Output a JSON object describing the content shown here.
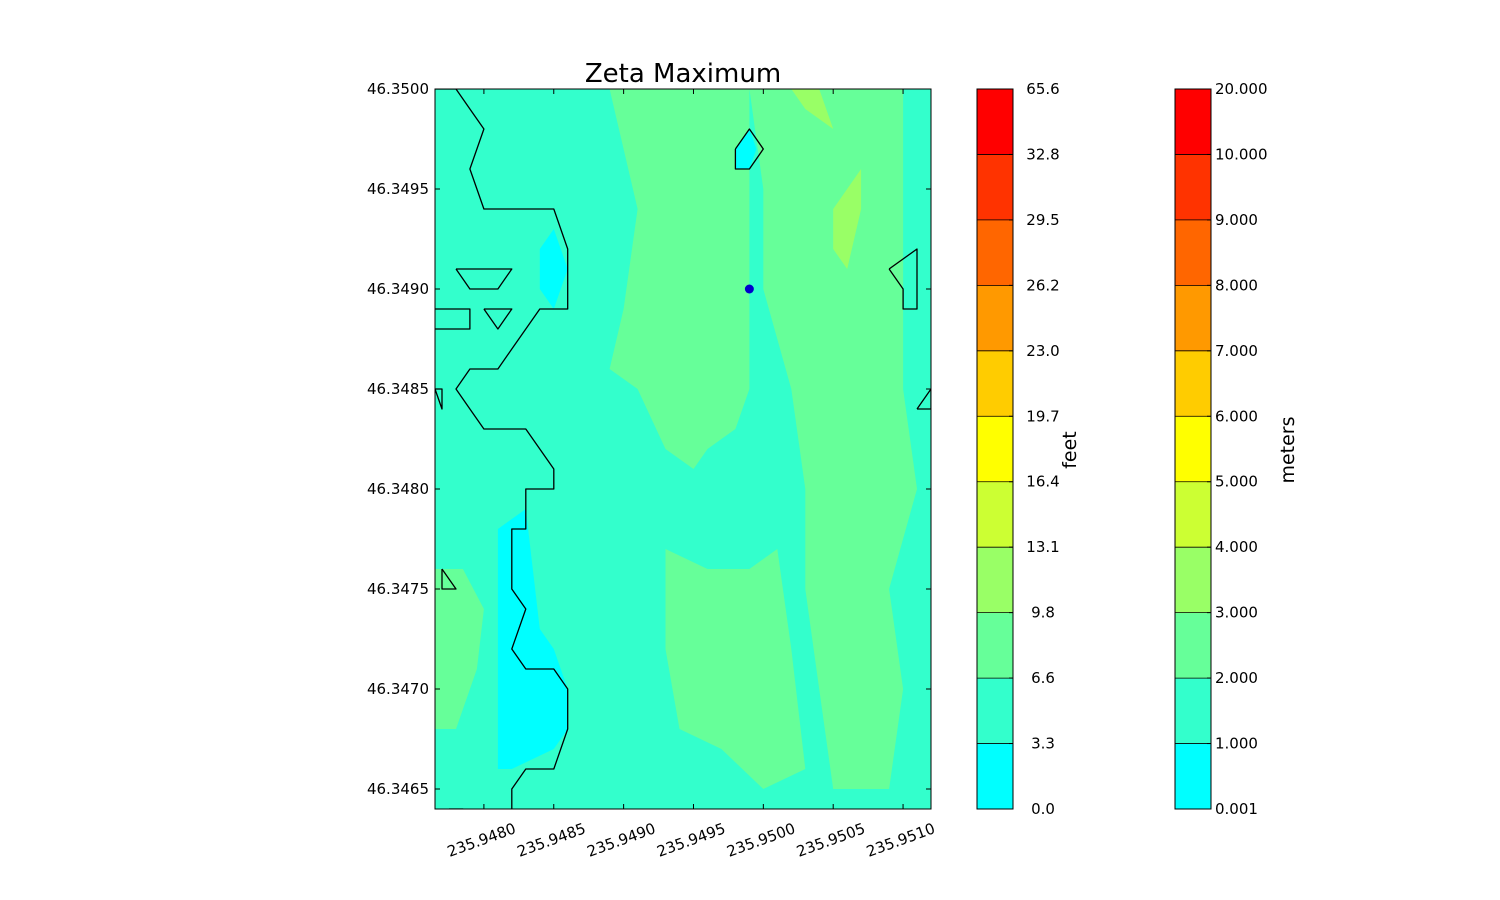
{
  "chart_data": {
    "type": "heatmap",
    "title": "Zeta Maximum",
    "xlabel": "",
    "ylabel": "",
    "xlim": [
      235.94765,
      235.9512
    ],
    "ylim": [
      46.3464,
      46.35
    ],
    "x_ticks": [
      235.948,
      235.9485,
      235.949,
      235.9495,
      235.95,
      235.9505,
      235.951
    ],
    "x_tick_labels": [
      "235.9480",
      "235.9485",
      "235.9490",
      "235.9495",
      "235.9500",
      "235.9505",
      "235.9510"
    ],
    "y_ticks": [
      46.3465,
      46.347,
      46.3475,
      46.348,
      46.3485,
      46.349,
      46.3495,
      46.35
    ],
    "y_tick_labels": [
      "46.3465",
      "46.3470",
      "46.3475",
      "46.3480",
      "46.3485",
      "46.3490",
      "46.3495",
      "46.3500"
    ],
    "marker": {
      "x": 235.9499,
      "y": 46.349,
      "color": "#0000cc"
    },
    "colorbars": [
      {
        "label": "feet",
        "tick_labels": [
          "0.0",
          "3.3",
          "6.6",
          "9.8",
          "13.1",
          "16.4",
          "19.7",
          "23.0",
          "26.2",
          "29.5",
          "32.8",
          "65.6"
        ]
      },
      {
        "label": "meters",
        "tick_labels": [
          "0.001",
          "1.000",
          "2.000",
          "3.000",
          "4.000",
          "5.000",
          "6.000",
          "7.000",
          "8.000",
          "9.000",
          "10.000",
          "20.000"
        ]
      }
    ],
    "level_colors": [
      "#00ffff",
      "#33ffcc",
      "#66ff99",
      "#99ff66",
      "#ccff33",
      "#ffff00",
      "#ffcc00",
      "#ff9900",
      "#ff6600",
      "#ff3300",
      "#ff0000"
    ],
    "field_background_level_color": "#33ffcc",
    "regions": [
      {
        "level_color": "#66ff99",
        "points": [
          [
            235.9489,
            46.35
          ],
          [
            235.9499,
            46.35
          ],
          [
            235.95,
            46.3495
          ],
          [
            235.95,
            46.349
          ],
          [
            235.9502,
            46.3485
          ],
          [
            235.9503,
            46.348
          ],
          [
            235.9503,
            46.3475
          ],
          [
            235.9504,
            46.347
          ],
          [
            235.9505,
            46.3465
          ],
          [
            235.9509,
            46.3465
          ],
          [
            235.951,
            46.347
          ],
          [
            235.9509,
            46.3475
          ],
          [
            235.9511,
            46.348
          ],
          [
            235.951,
            46.3485
          ],
          [
            235.951,
            46.349
          ],
          [
            235.951,
            46.3495
          ],
          [
            235.951,
            46.35
          ],
          [
            235.95,
            46.35
          ],
          [
            235.9499,
            46.35
          ],
          [
            235.9489,
            46.35
          ]
        ]
      },
      {
        "level_color": "#66ff99",
        "points": [
          [
            235.9489,
            46.35
          ],
          [
            235.9491,
            46.3494
          ],
          [
            235.949,
            46.3489
          ],
          [
            235.9489,
            46.3486
          ],
          [
            235.9491,
            46.3485
          ],
          [
            235.9493,
            46.3482
          ],
          [
            235.9495,
            46.3481
          ],
          [
            235.9496,
            46.3482
          ],
          [
            235.9498,
            46.3483
          ],
          [
            235.9499,
            46.3485
          ],
          [
            235.9499,
            46.349
          ],
          [
            235.9499,
            46.3495
          ],
          [
            235.9499,
            46.35
          ]
        ]
      },
      {
        "level_color": "#66ff99",
        "points": [
          [
            235.9493,
            46.3477
          ],
          [
            235.9496,
            46.3476
          ],
          [
            235.9499,
            46.3476
          ],
          [
            235.9501,
            46.3477
          ],
          [
            235.9502,
            46.3472
          ],
          [
            235.9503,
            46.3466
          ],
          [
            235.95,
            46.3465
          ],
          [
            235.9497,
            46.3467
          ],
          [
            235.9494,
            46.3468
          ],
          [
            235.9493,
            46.3472
          ]
        ]
      },
      {
        "level_color": "#99ff66",
        "points": [
          [
            235.9502,
            46.35
          ],
          [
            235.9504,
            46.35
          ],
          [
            235.9505,
            46.3498
          ],
          [
            235.9503,
            46.3499
          ]
        ]
      },
      {
        "level_color": "#99ff66",
        "points": [
          [
            235.9505,
            46.3494
          ],
          [
            235.9507,
            46.3496
          ],
          [
            235.9507,
            46.3494
          ],
          [
            235.9506,
            46.3491
          ],
          [
            235.9505,
            46.3492
          ]
        ]
      },
      {
        "level_color": "#66ff99",
        "points": [
          [
            235.94765,
            46.3476
          ],
          [
            235.94785,
            46.3476
          ],
          [
            235.948,
            46.3474
          ],
          [
            235.94795,
            46.3471
          ],
          [
            235.9478,
            46.3468
          ],
          [
            235.94765,
            46.3468
          ]
        ]
      },
      {
        "level_color": "#00ffff",
        "points": [
          [
            235.9481,
            46.3478
          ],
          [
            235.9483,
            46.3479
          ],
          [
            235.9484,
            46.3473
          ],
          [
            235.9485,
            46.3472
          ],
          [
            235.9486,
            46.347
          ],
          [
            235.9486,
            46.3468
          ],
          [
            235.9485,
            46.3467
          ],
          [
            235.9482,
            46.3466
          ],
          [
            235.9481,
            46.3466
          ],
          [
            235.9481,
            46.347
          ]
        ]
      },
      {
        "level_color": "#00ffff",
        "points": [
          [
            235.9484,
            46.3492
          ],
          [
            235.9485,
            46.3493
          ],
          [
            235.9486,
            46.3491
          ],
          [
            235.9485,
            46.3489
          ],
          [
            235.9484,
            46.349
          ]
        ]
      },
      {
        "level_color": "#00ffff",
        "points": [
          [
            235.9498,
            46.3497
          ],
          [
            235.9499,
            46.3498
          ],
          [
            235.94995,
            46.3497
          ],
          [
            235.9499,
            46.3496
          ],
          [
            235.9498,
            46.3496
          ]
        ]
      }
    ],
    "contour_lines": [
      [
        [
          235.94765,
          46.35
        ],
        [
          235.9478,
          46.35
        ],
        [
          235.9479,
          46.3499
        ],
        [
          235.948,
          46.3498
        ],
        [
          235.9479,
          46.3496
        ],
        [
          235.948,
          46.3494
        ],
        [
          235.9481,
          46.3494
        ],
        [
          235.9483,
          46.3494
        ],
        [
          235.9485,
          46.3494
        ],
        [
          235.9486,
          46.3492
        ],
        [
          235.9486,
          46.349
        ],
        [
          235.9486,
          46.3489
        ],
        [
          235.9484,
          46.3489
        ],
        [
          235.9483,
          46.3488
        ],
        [
          235.9482,
          46.3487
        ],
        [
          235.9481,
          46.3486
        ],
        [
          235.9479,
          46.3486
        ],
        [
          235.9478,
          46.3485
        ],
        [
          235.9479,
          46.3484
        ],
        [
          235.948,
          46.3483
        ],
        [
          235.9482,
          46.3483
        ],
        [
          235.9483,
          46.3483
        ],
        [
          235.9484,
          46.3482
        ],
        [
          235.9485,
          46.3481
        ],
        [
          235.9485,
          46.348
        ],
        [
          235.9483,
          46.348
        ],
        [
          235.9483,
          46.3478
        ],
        [
          235.9482,
          46.3478
        ],
        [
          235.9482,
          46.3476
        ],
        [
          235.9482,
          46.3475
        ],
        [
          235.9483,
          46.3474
        ],
        [
          235.9482,
          46.3472
        ],
        [
          235.9483,
          46.3471
        ],
        [
          235.9485,
          46.3471
        ],
        [
          235.9486,
          46.347
        ],
        [
          235.9486,
          46.3468
        ],
        [
          235.9485,
          46.3466
        ],
        [
          235.9483,
          46.3466
        ],
        [
          235.9482,
          46.3465
        ],
        [
          235.9482,
          46.3464
        ]
      ],
      [
        [
          235.9478,
          46.3491
        ],
        [
          235.948,
          46.3491
        ],
        [
          235.9482,
          46.3491
        ],
        [
          235.9481,
          46.349
        ],
        [
          235.9479,
          46.349
        ],
        [
          235.9478,
          46.3491
        ]
      ],
      [
        [
          235.948,
          46.3489
        ],
        [
          235.9481,
          46.3489
        ],
        [
          235.9482,
          46.3489
        ],
        [
          235.9481,
          46.3488
        ],
        [
          235.948,
          46.3489
        ]
      ],
      [
        [
          235.94765,
          46.3489
        ],
        [
          235.9479,
          46.3489
        ],
        [
          235.9479,
          46.3488
        ],
        [
          235.9478,
          46.3488
        ],
        [
          235.94765,
          46.3488
        ]
      ],
      [
        [
          235.94765,
          46.3485
        ],
        [
          235.9477,
          46.3485
        ],
        [
          235.9477,
          46.3484
        ],
        [
          235.94765,
          46.3485
        ]
      ],
      [
        [
          235.9477,
          46.3476
        ],
        [
          235.9478,
          46.3475
        ],
        [
          235.9477,
          46.3475
        ],
        [
          235.9477,
          46.3476
        ]
      ],
      [
        [
          235.9498,
          46.3497
        ],
        [
          235.9499,
          46.3498
        ],
        [
          235.95,
          46.3497
        ],
        [
          235.9499,
          46.3496
        ],
        [
          235.9498,
          46.3496
        ],
        [
          235.9498,
          46.3497
        ]
      ],
      [
        [
          235.9509,
          46.3491
        ],
        [
          235.9511,
          46.3492
        ],
        [
          235.9511,
          46.3489
        ],
        [
          235.951,
          46.3489
        ],
        [
          235.951,
          46.349
        ],
        [
          235.9509,
          46.3491
        ]
      ],
      [
        [
          235.9511,
          46.3484
        ],
        [
          235.9512,
          46.3485
        ],
        [
          235.9512,
          46.3484
        ],
        [
          235.9511,
          46.3484
        ]
      ],
      [
        [
          235.94775,
          46.3464
        ],
        [
          235.9478,
          46.3464
        ],
        [
          235.94785,
          46.3464
        ],
        [
          235.94775,
          46.3464
        ]
      ]
    ]
  }
}
